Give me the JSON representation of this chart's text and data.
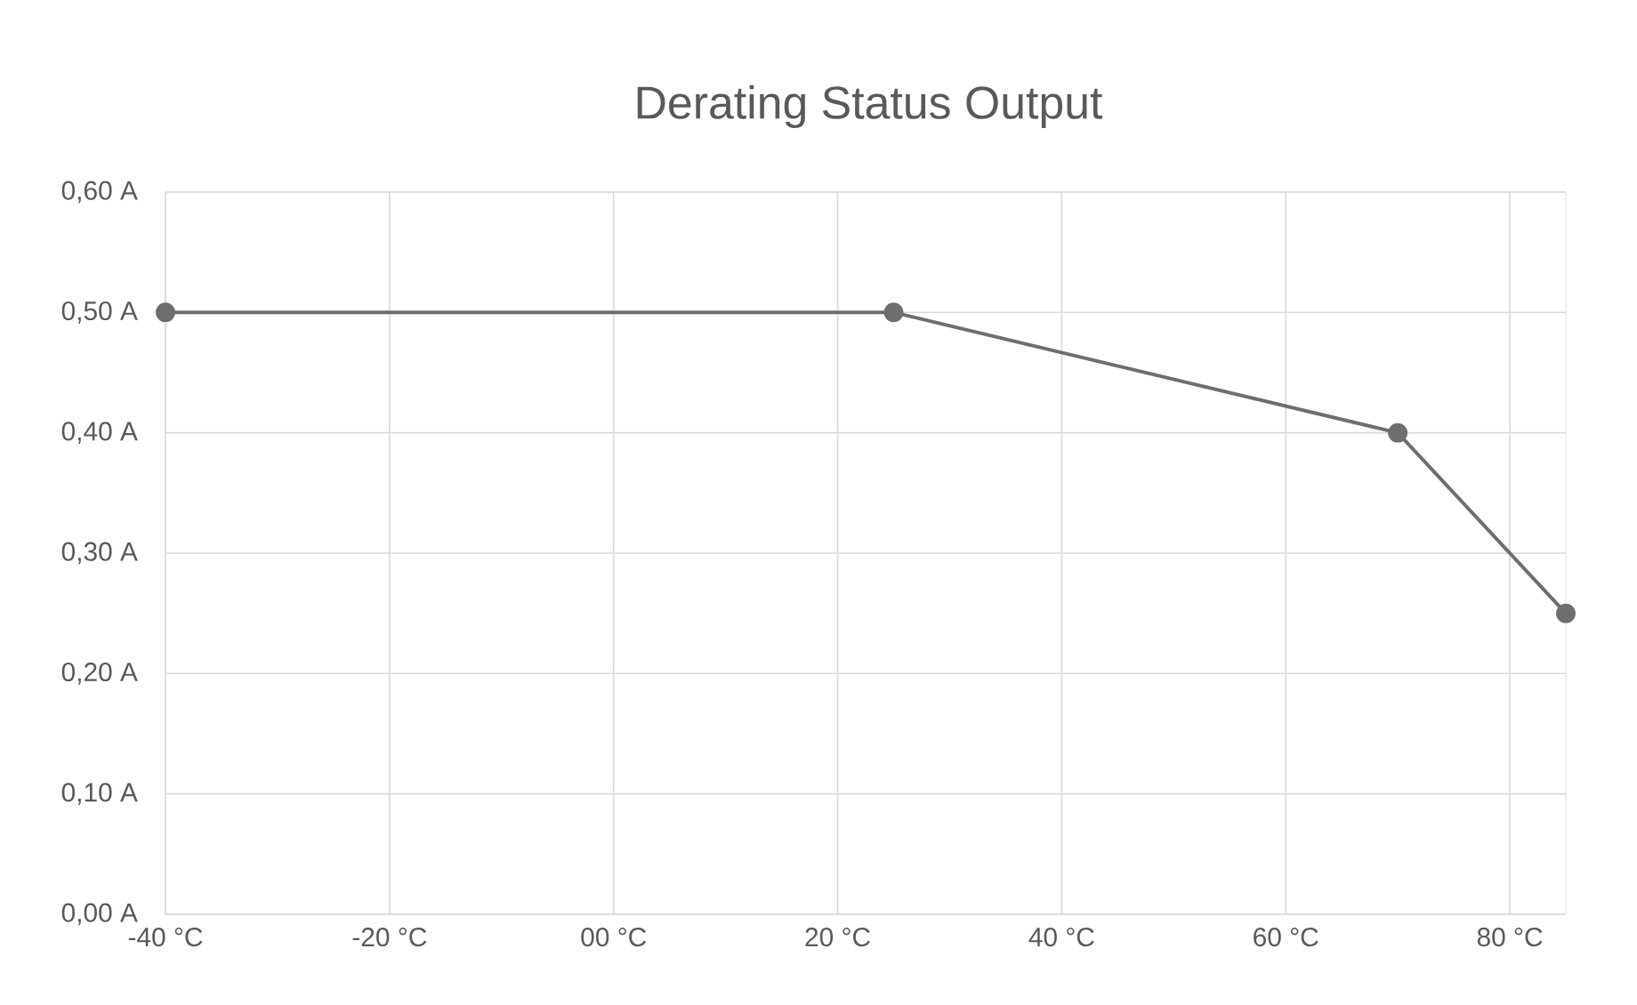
{
  "chart_data": {
    "type": "line",
    "title": "Derating Status Output",
    "x": [
      -40,
      25,
      70,
      85
    ],
    "series": [
      {
        "color": "#6e6e6e",
        "values": [
          0.5,
          0.5,
          0.4,
          0.25
        ]
      }
    ],
    "xlim": [
      -40,
      85
    ],
    "xticks": [
      {
        "value": -40,
        "label": "-40 °C"
      },
      {
        "value": -20,
        "label": "-20 °C"
      },
      {
        "value": 0,
        "label": "00 °C"
      },
      {
        "value": 20,
        "label": "20 °C"
      },
      {
        "value": 40,
        "label": "40 °C"
      },
      {
        "value": 60,
        "label": "60 °C"
      },
      {
        "value": 80,
        "label": "80 °C"
      }
    ],
    "ylim": [
      0,
      0.6
    ],
    "yticks": [
      {
        "value": 0,
        "label": "0,00 A"
      },
      {
        "value": 0.1,
        "label": "0,10 A"
      },
      {
        "value": 0.2,
        "label": "0,20 A"
      },
      {
        "value": 0.3,
        "label": "0,30 A"
      },
      {
        "value": 0.4,
        "label": "0,40 A"
      },
      {
        "value": 0.5,
        "label": "0,50 A"
      },
      {
        "value": 0.6,
        "label": "0,60 A"
      }
    ],
    "grid": true,
    "marker": "circle",
    "line_style": "solid"
  }
}
